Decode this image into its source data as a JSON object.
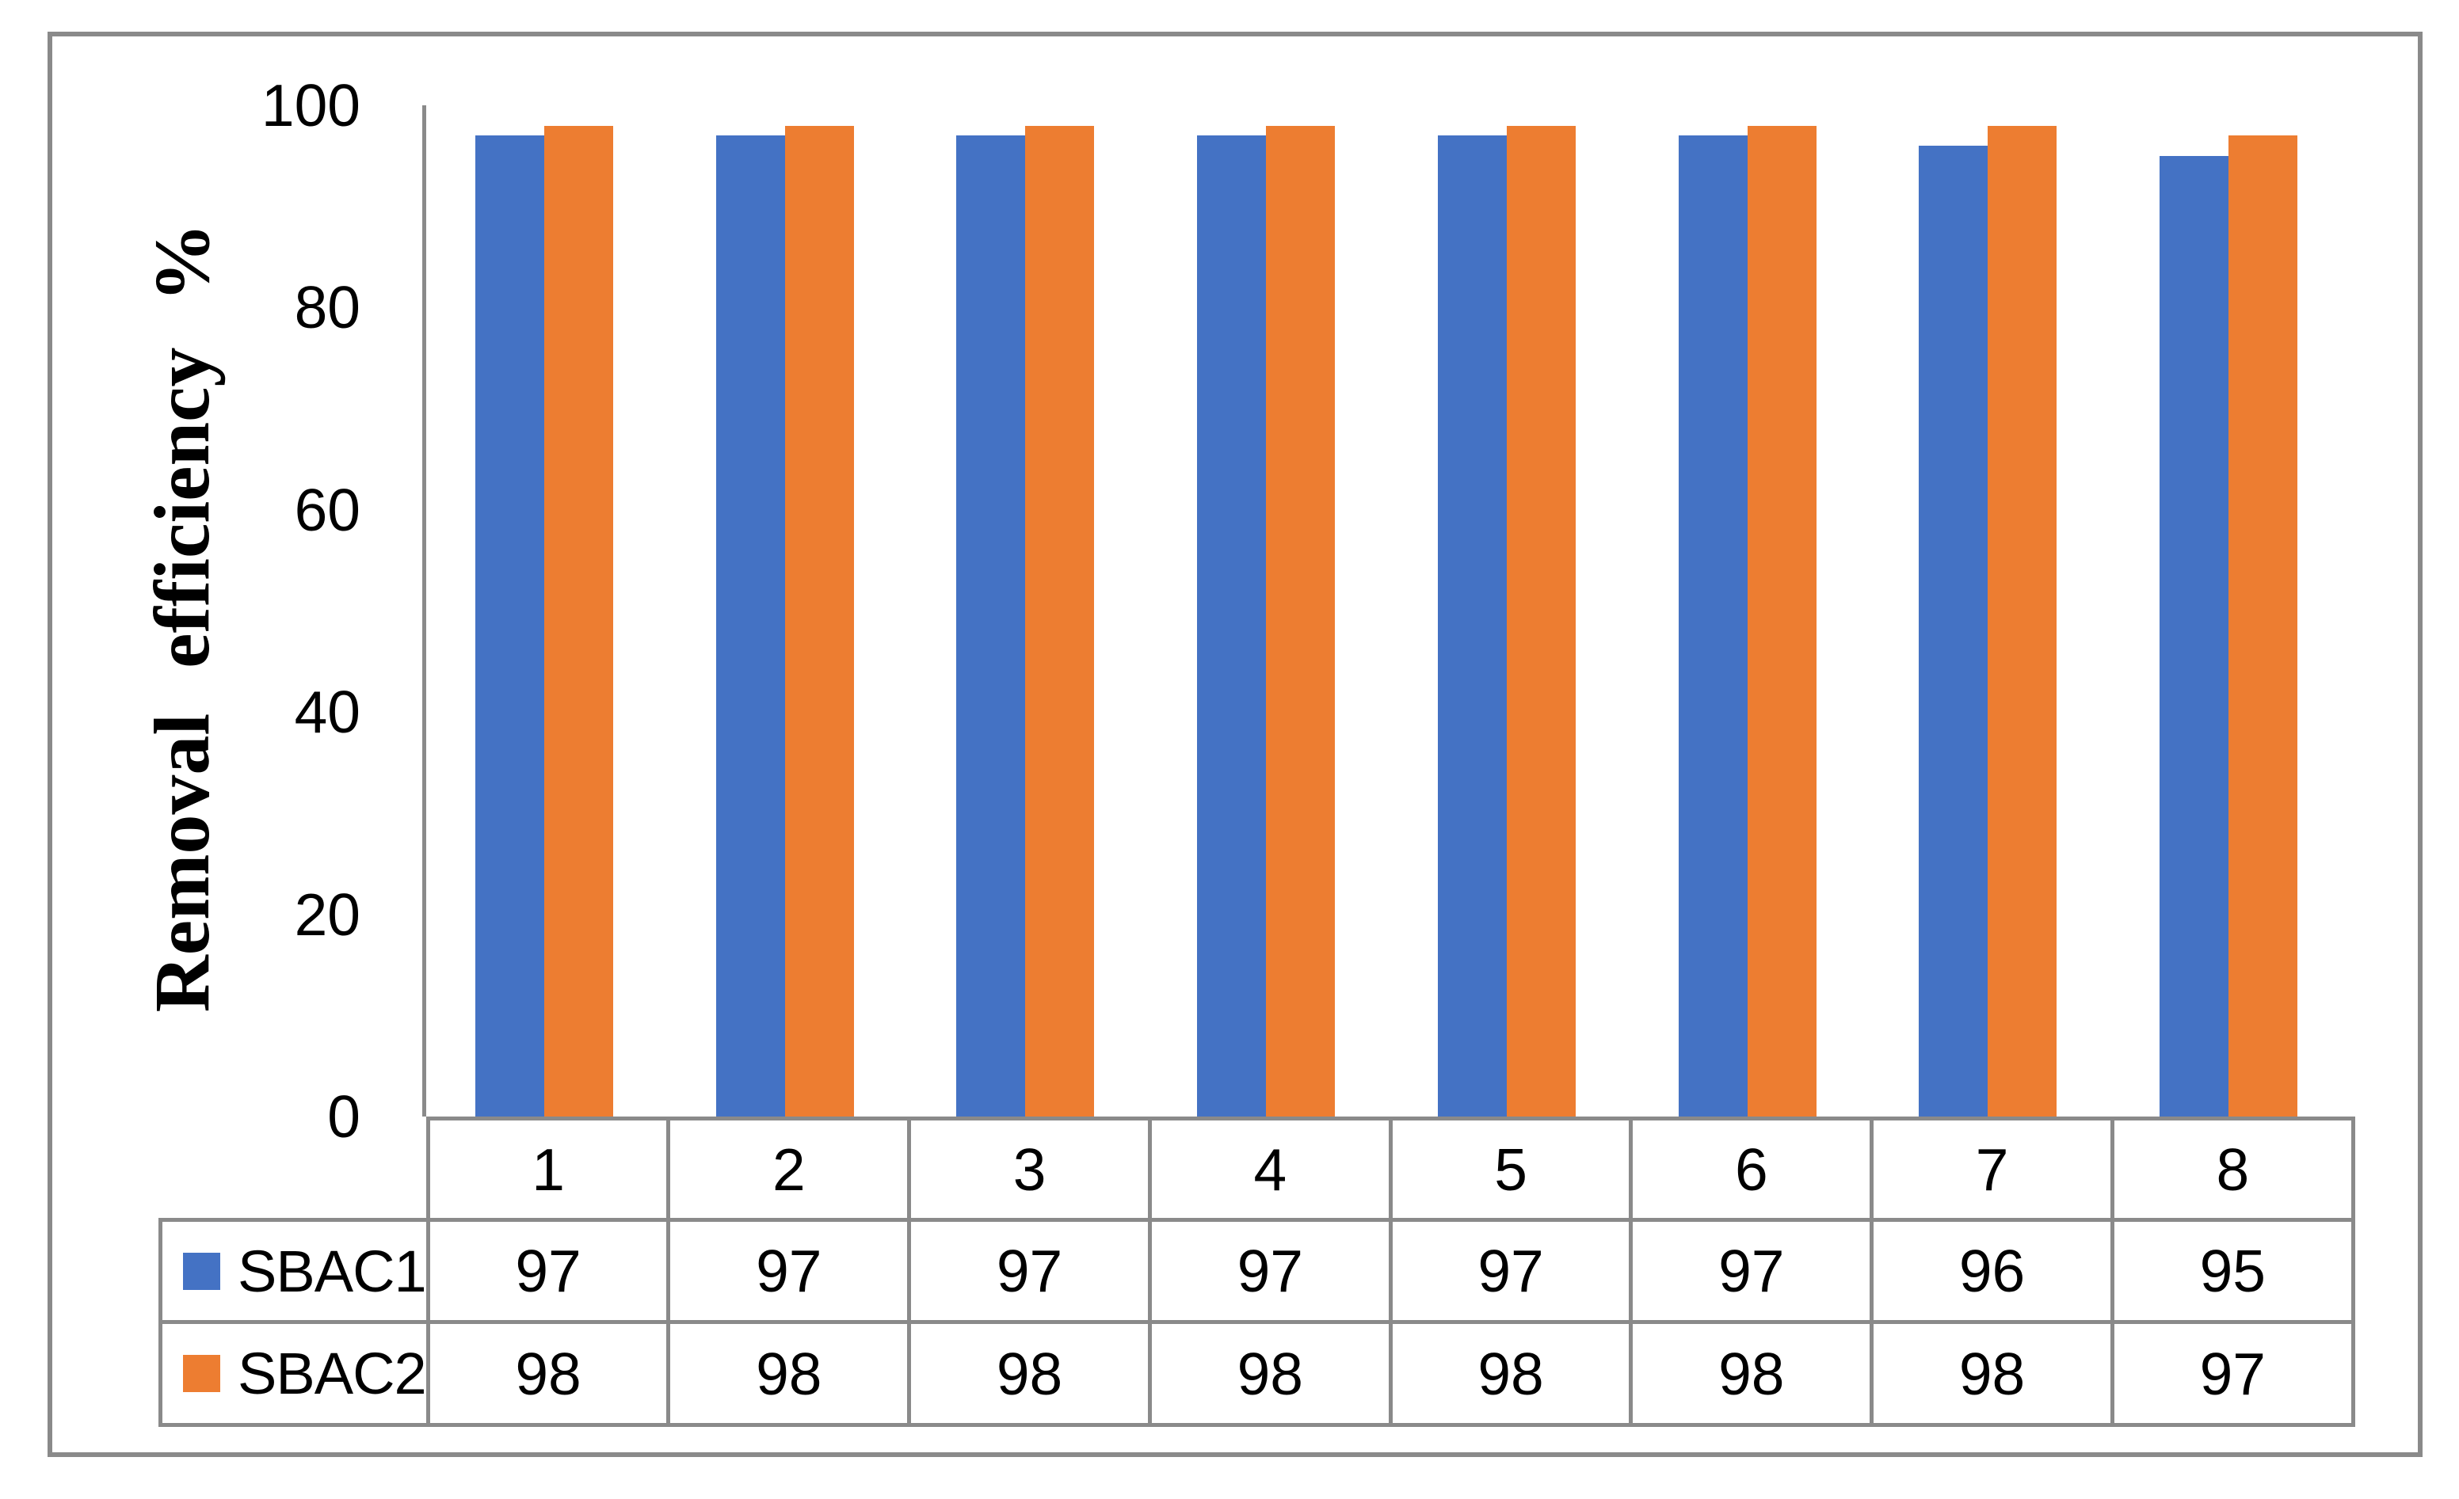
{
  "figure": {
    "frame_color": "#8a8a8a",
    "background": "#ffffff"
  },
  "chart_data": {
    "type": "bar",
    "title": "",
    "categories": [
      "1",
      "2",
      "3",
      "4",
      "5",
      "6",
      "7",
      "8"
    ],
    "series": [
      {
        "name": "SBAC1",
        "color": "#4472C4",
        "values": [
          97,
          97,
          97,
          97,
          97,
          97,
          96,
          95
        ]
      },
      {
        "name": "SBAC2",
        "color": "#ED7D31",
        "values": [
          98,
          98,
          98,
          98,
          98,
          98,
          98,
          97
        ]
      }
    ],
    "xlabel": "",
    "ylabel": "Removal efficiency %",
    "ylim": [
      0,
      100
    ],
    "yticks": [
      0,
      20,
      40,
      60,
      80,
      100
    ],
    "grid": false,
    "legend_position": "table-left",
    "data_table_shown": true
  }
}
